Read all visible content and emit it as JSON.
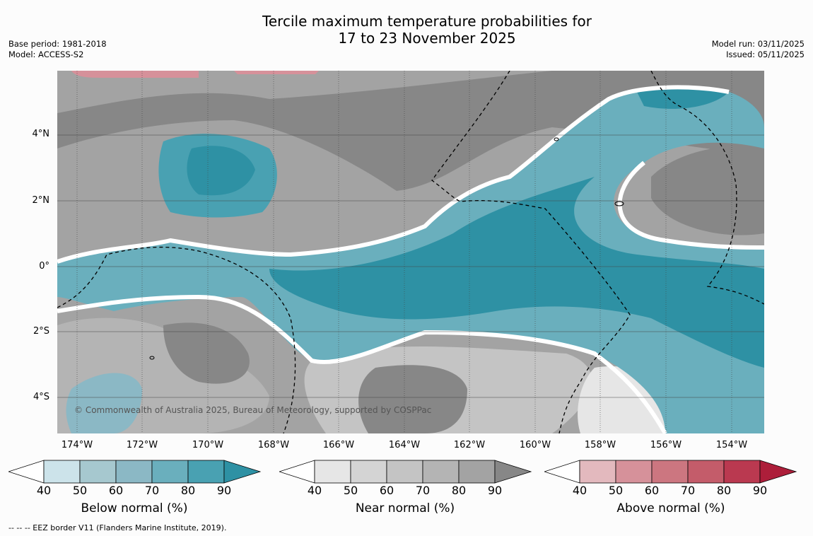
{
  "title": {
    "line1": "Tercile maximum temperature probabilities for",
    "line2": "17 to 23 November 2025"
  },
  "meta": {
    "base_period": "Base period: 1981-2018",
    "model": "Model: ACCESS-S2",
    "model_run": "Model run: 03/11/2025",
    "issued": "Issued: 05/11/2025"
  },
  "map": {
    "lat_labels": [
      "4°N",
      "2°N",
      "0°",
      "2°S",
      "4°S"
    ],
    "lon_labels": [
      "174°W",
      "172°W",
      "170°W",
      "168°W",
      "166°W",
      "164°W",
      "162°W",
      "160°W",
      "158°W",
      "156°W",
      "154°W"
    ],
    "copyright": "© Commonwealth of Australia 2025, Bureau of Meteorology, supported by COSPPac"
  },
  "legends": [
    {
      "title": "Below normal (%)",
      "ticks": [
        "40",
        "50",
        "60",
        "70",
        "80",
        "90"
      ],
      "colors": [
        "#ffffff",
        "#cce3ea",
        "#a6c8cf",
        "#8bb8c5",
        "#6aafbd",
        "#49a1b2",
        "#2e91a4"
      ]
    },
    {
      "title": "Near normal (%)",
      "ticks": [
        "40",
        "50",
        "60",
        "70",
        "80",
        "90"
      ],
      "colors": [
        "#ffffff",
        "#e6e6e6",
        "#d4d4d4",
        "#c4c4c4",
        "#b4b4b4",
        "#a3a3a3",
        "#878787"
      ]
    },
    {
      "title": "Above normal (%)",
      "ticks": [
        "40",
        "50",
        "60",
        "70",
        "80",
        "90"
      ],
      "colors": [
        "#ffffff",
        "#e3b9be",
        "#d6919a",
        "#cc7680",
        "#c45c6a",
        "#ba3950",
        "#ad1e3a"
      ]
    }
  ],
  "footnote": "--  --  -- EEZ border V11 (Flanders Marine Institute, 2019)."
}
